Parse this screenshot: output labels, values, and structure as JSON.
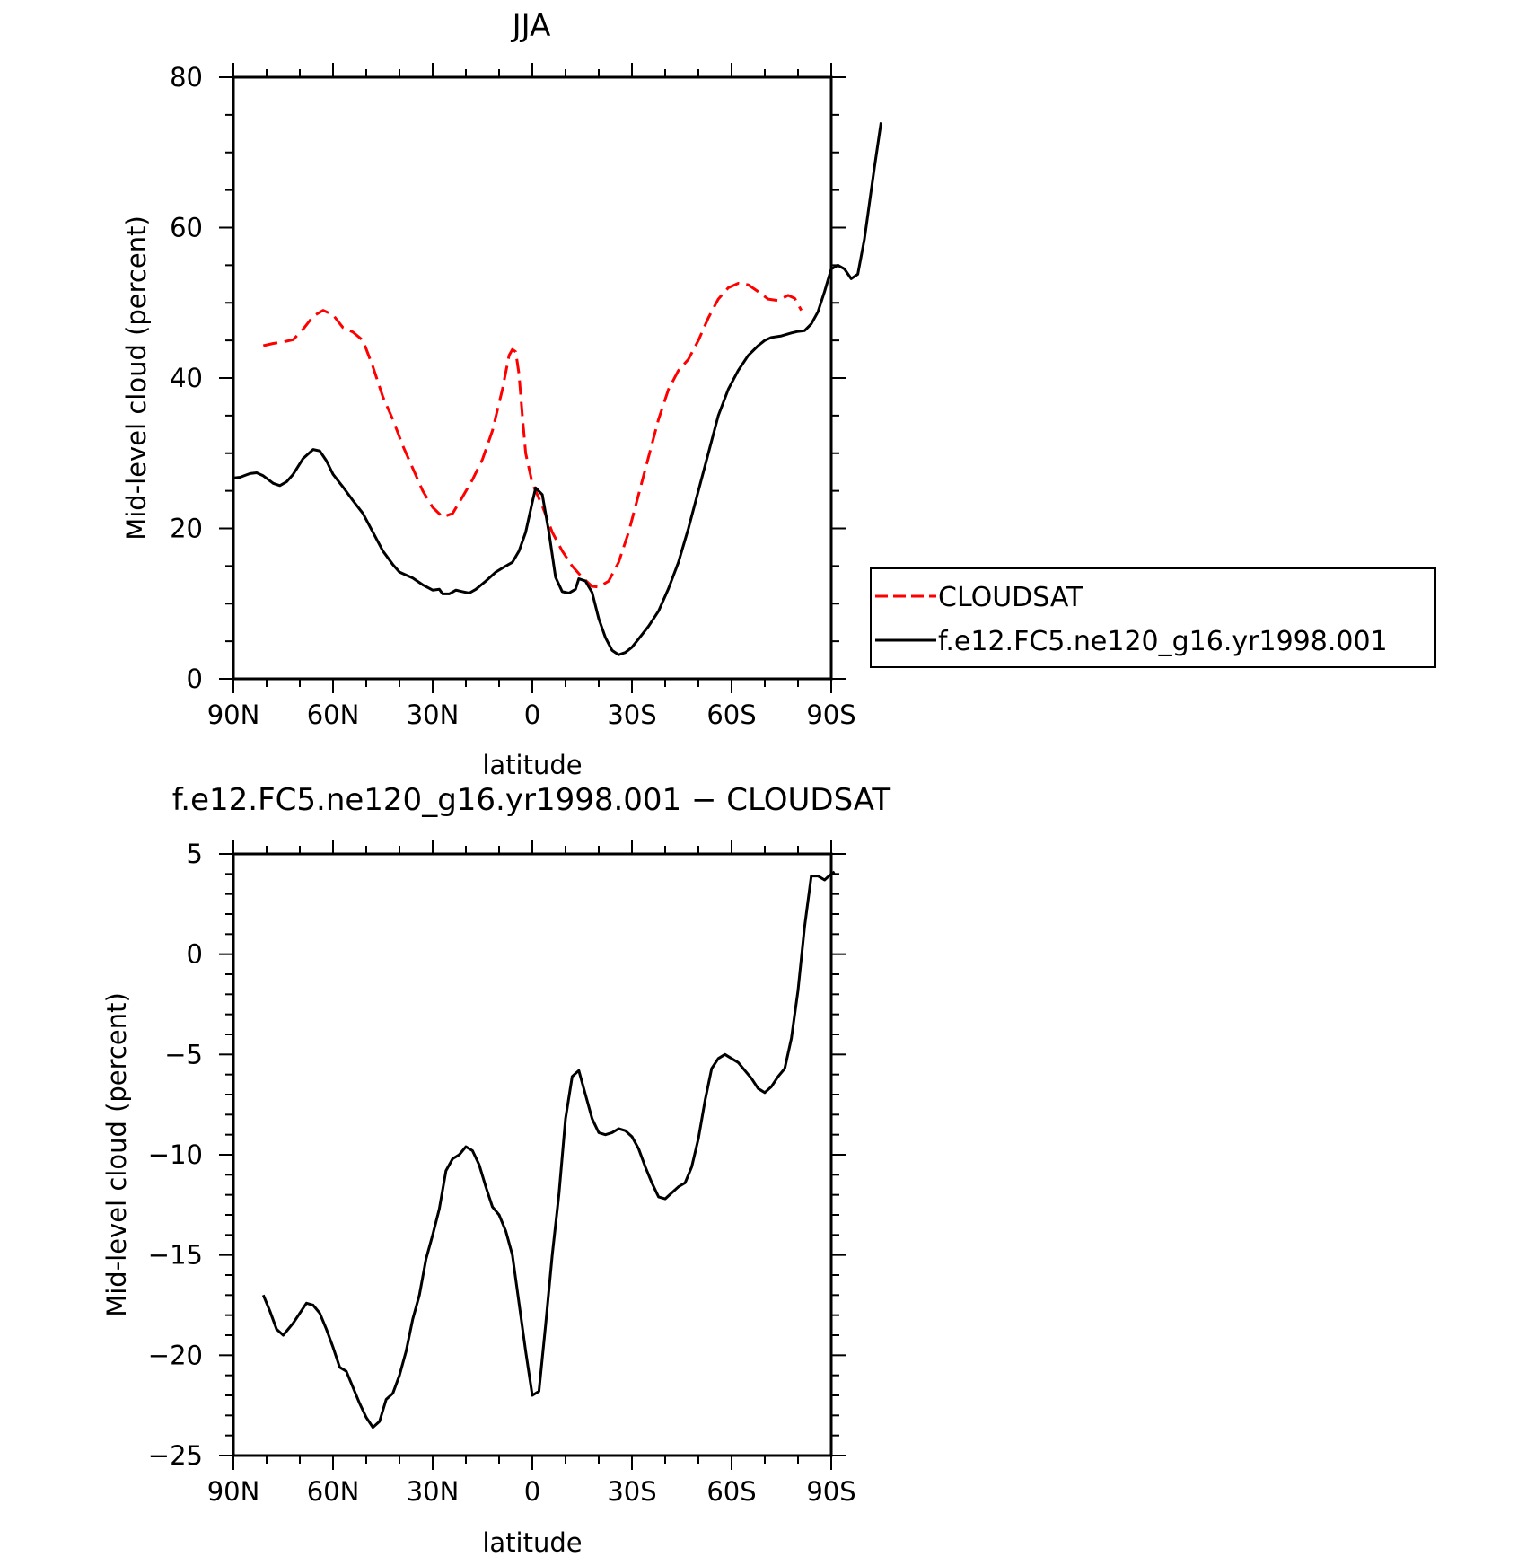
{
  "chart_data": [
    {
      "type": "line",
      "title": "JJA",
      "xlabel": "latitude",
      "ylabel": "Mid-level cloud (percent)",
      "xlim": [
        90,
        -90
      ],
      "ylim": [
        0,
        80
      ],
      "x_tick_values": [
        90,
        60,
        30,
        0,
        -30,
        -60,
        -90
      ],
      "x_tick_labels": [
        "90N",
        "60N",
        "30N",
        "0",
        "30S",
        "60S",
        "90S"
      ],
      "y_tick_values": [
        0,
        20,
        40,
        60,
        80
      ],
      "y_tick_labels": [
        "0",
        "20",
        "40",
        "60",
        "80"
      ],
      "grid": false,
      "legend_position": "right-middle",
      "series": [
        {
          "name": "CLOUDSAT",
          "color": "#ff0000",
          "dash": "dashed",
          "points": [
            [
              81,
              44.3
            ],
            [
              78,
              44.6
            ],
            [
              75,
              44.8
            ],
            [
              72,
              45.1
            ],
            [
              69,
              46.5
            ],
            [
              66,
              48.2
            ],
            [
              63,
              49
            ],
            [
              60,
              48.4
            ],
            [
              57,
              46.7
            ],
            [
              54,
              46.1
            ],
            [
              51,
              45
            ],
            [
              48,
              41.5
            ],
            [
              45,
              37.5
            ],
            [
              42,
              34.5
            ],
            [
              39,
              31
            ],
            [
              36,
              28
            ],
            [
              33,
              25
            ],
            [
              30,
              22.8
            ],
            [
              27,
              21.5
            ],
            [
              24,
              22
            ],
            [
              21,
              24.2
            ],
            [
              18,
              26.5
            ],
            [
              15,
              29.2
            ],
            [
              12,
              33
            ],
            [
              9,
              38.5
            ],
            [
              7,
              43
            ],
            [
              6,
              43.8
            ],
            [
              5,
              43.5
            ],
            [
              4,
              40.5
            ],
            [
              3,
              35
            ],
            [
              2,
              30
            ],
            [
              0,
              26
            ],
            [
              -3,
              23
            ],
            [
              -6,
              19.5
            ],
            [
              -9,
              17
            ],
            [
              -12,
              15
            ],
            [
              -15,
              13.5
            ],
            [
              -18,
              12.3
            ],
            [
              -20,
              12.2
            ],
            [
              -23,
              13
            ],
            [
              -26,
              15.5
            ],
            [
              -29,
              19.5
            ],
            [
              -32,
              24.5
            ],
            [
              -35,
              29.5
            ],
            [
              -38,
              34.5
            ],
            [
              -41,
              38.5
            ],
            [
              -44,
              41
            ],
            [
              -47,
              42.5
            ],
            [
              -50,
              45
            ],
            [
              -53,
              48
            ],
            [
              -56,
              50.5
            ],
            [
              -59,
              52
            ],
            [
              -62,
              52.6
            ],
            [
              -65,
              52.4
            ],
            [
              -68,
              51.5
            ],
            [
              -71,
              50.5
            ],
            [
              -74,
              50.3
            ],
            [
              -77,
              51
            ],
            [
              -79,
              50.6
            ],
            [
              -81,
              49
            ]
          ]
        },
        {
          "name": "f.e12.FC5.ne120_g16.yr1998.001",
          "color": "#000000",
          "dash": "solid",
          "points": [
            [
              90,
              26.7
            ],
            [
              88,
              26.8
            ],
            [
              85,
              27.3
            ],
            [
              83,
              27.4
            ],
            [
              81,
              27
            ],
            [
              78,
              26
            ],
            [
              76,
              25.7
            ],
            [
              74,
              26.2
            ],
            [
              72,
              27.2
            ],
            [
              69,
              29.3
            ],
            [
              66,
              30.5
            ],
            [
              64,
              30.3
            ],
            [
              62,
              29
            ],
            [
              60,
              27.2
            ],
            [
              57,
              25.5
            ],
            [
              54,
              23.7
            ],
            [
              51,
              22
            ],
            [
              48,
              19.5
            ],
            [
              45,
              17
            ],
            [
              42,
              15.2
            ],
            [
              40,
              14.2
            ],
            [
              36,
              13.4
            ],
            [
              33,
              12.5
            ],
            [
              30,
              11.8
            ],
            [
              28,
              11.9
            ],
            [
              27,
              11.3
            ],
            [
              25,
              11.3
            ],
            [
              23,
              11.8
            ],
            [
              21,
              11.6
            ],
            [
              19,
              11.4
            ],
            [
              17,
              11.9
            ],
            [
              14,
              13
            ],
            [
              11,
              14.2
            ],
            [
              8,
              15
            ],
            [
              6,
              15.5
            ],
            [
              4,
              17
            ],
            [
              2,
              19.5
            ],
            [
              0,
              23.5
            ],
            [
              -1,
              25.4
            ],
            [
              -3,
              24.5
            ],
            [
              -5,
              19.5
            ],
            [
              -7,
              13.5
            ],
            [
              -9,
              11.6
            ],
            [
              -11,
              11.4
            ],
            [
              -13,
              11.9
            ],
            [
              -14,
              13.3
            ],
            [
              -16,
              13
            ],
            [
              -18,
              11.5
            ],
            [
              -20,
              8
            ],
            [
              -22,
              5.5
            ],
            [
              -24,
              3.8
            ],
            [
              -26,
              3.2
            ],
            [
              -28,
              3.5
            ],
            [
              -30,
              4.2
            ],
            [
              -32,
              5.3
            ],
            [
              -35,
              7
            ],
            [
              -38,
              9
            ],
            [
              -41,
              12
            ],
            [
              -44,
              15.5
            ],
            [
              -47,
              20
            ],
            [
              -50,
              25
            ],
            [
              -53,
              30
            ],
            [
              -56,
              35
            ],
            [
              -59,
              38.5
            ],
            [
              -62,
              41
            ],
            [
              -65,
              43
            ],
            [
              -68,
              44.3
            ],
            [
              -70,
              45
            ],
            [
              -72,
              45.4
            ],
            [
              -75,
              45.6
            ],
            [
              -78,
              46
            ],
            [
              -80,
              46.2
            ],
            [
              -82,
              46.3
            ],
            [
              -84,
              47.2
            ],
            [
              -86,
              48.8
            ],
            [
              -88,
              51.5
            ],
            [
              -90,
              54.5
            ],
            [
              -92,
              55
            ],
            [
              -94,
              54.5
            ],
            [
              -96,
              53.2
            ],
            [
              -98,
              53.8
            ],
            [
              -100,
              58.5
            ],
            [
              -103,
              68
            ],
            [
              -105,
              74
            ]
          ]
        }
      ]
    },
    {
      "type": "line",
      "title": "f.e12.FC5.ne120_g16.yr1998.001 − CLOUDSAT",
      "xlabel": "latitude",
      "ylabel": "Mid-level cloud (percent)",
      "xlim": [
        90,
        -90
      ],
      "ylim": [
        -25,
        5
      ],
      "x_tick_values": [
        90,
        60,
        30,
        0,
        -30,
        -60,
        -90
      ],
      "x_tick_labels": [
        "90N",
        "60N",
        "30N",
        "0",
        "30S",
        "60S",
        "90S"
      ],
      "y_tick_values": [
        -25,
        -20,
        -15,
        -10,
        -5,
        0,
        5
      ],
      "y_tick_labels": [
        "−25",
        "−20",
        "−15",
        "−10",
        "−5",
        "0",
        "5"
      ],
      "grid": false,
      "series": [
        {
          "color": "#000000",
          "dash": "solid",
          "points": [
            [
              81,
              -17
            ],
            [
              79,
              -17.8
            ],
            [
              77,
              -18.7
            ],
            [
              75,
              -19
            ],
            [
              72,
              -18.4
            ],
            [
              70,
              -17.9
            ],
            [
              68,
              -17.4
            ],
            [
              66,
              -17.5
            ],
            [
              64,
              -17.9
            ],
            [
              62,
              -18.7
            ],
            [
              60,
              -19.6
            ],
            [
              58,
              -20.6
            ],
            [
              56,
              -20.8
            ],
            [
              54,
              -21.6
            ],
            [
              52,
              -22.4
            ],
            [
              50,
              -23.1
            ],
            [
              48,
              -23.6
            ],
            [
              46,
              -23.3
            ],
            [
              44,
              -22.2
            ],
            [
              42,
              -21.9
            ],
            [
              40,
              -21
            ],
            [
              38,
              -19.8
            ],
            [
              36,
              -18.2
            ],
            [
              34,
              -17
            ],
            [
              32,
              -15.2
            ],
            [
              30,
              -14
            ],
            [
              28,
              -12.7
            ],
            [
              26,
              -10.8
            ],
            [
              24,
              -10.2
            ],
            [
              22,
              -10
            ],
            [
              20,
              -9.6
            ],
            [
              18,
              -9.8
            ],
            [
              16,
              -10.5
            ],
            [
              14,
              -11.6
            ],
            [
              12,
              -12.6
            ],
            [
              10,
              -13
            ],
            [
              8,
              -13.8
            ],
            [
              6,
              -15
            ],
            [
              4,
              -17.4
            ],
            [
              2,
              -19.8
            ],
            [
              0,
              -22
            ],
            [
              -2,
              -21.8
            ],
            [
              -4,
              -18.5
            ],
            [
              -6,
              -15
            ],
            [
              -8,
              -12
            ],
            [
              -10,
              -8.2
            ],
            [
              -12,
              -6.1
            ],
            [
              -14,
              -5.8
            ],
            [
              -16,
              -7
            ],
            [
              -18,
              -8.2
            ],
            [
              -20,
              -8.9
            ],
            [
              -22,
              -9
            ],
            [
              -24,
              -8.9
            ],
            [
              -26,
              -8.7
            ],
            [
              -28,
              -8.8
            ],
            [
              -30,
              -9.1
            ],
            [
              -32,
              -9.7
            ],
            [
              -34,
              -10.6
            ],
            [
              -36,
              -11.4
            ],
            [
              -38,
              -12.1
            ],
            [
              -40,
              -12.2
            ],
            [
              -42,
              -11.9
            ],
            [
              -44,
              -11.6
            ],
            [
              -46,
              -11.4
            ],
            [
              -48,
              -10.6
            ],
            [
              -50,
              -9.2
            ],
            [
              -52,
              -7.3
            ],
            [
              -54,
              -5.7
            ],
            [
              -56,
              -5.2
            ],
            [
              -58,
              -5
            ],
            [
              -60,
              -5.2
            ],
            [
              -62,
              -5.4
            ],
            [
              -64,
              -5.8
            ],
            [
              -66,
              -6.2
            ],
            [
              -68,
              -6.7
            ],
            [
              -70,
              -6.9
            ],
            [
              -72,
              -6.6
            ],
            [
              -74,
              -6.1
            ],
            [
              -76,
              -5.7
            ],
            [
              -78,
              -4.2
            ],
            [
              -80,
              -1.8
            ],
            [
              -82,
              1.4
            ],
            [
              -84,
              3.9
            ],
            [
              -86,
              3.9
            ],
            [
              -88,
              3.7
            ],
            [
              -90,
              4
            ],
            [
              -91,
              4.1
            ]
          ]
        }
      ]
    }
  ]
}
